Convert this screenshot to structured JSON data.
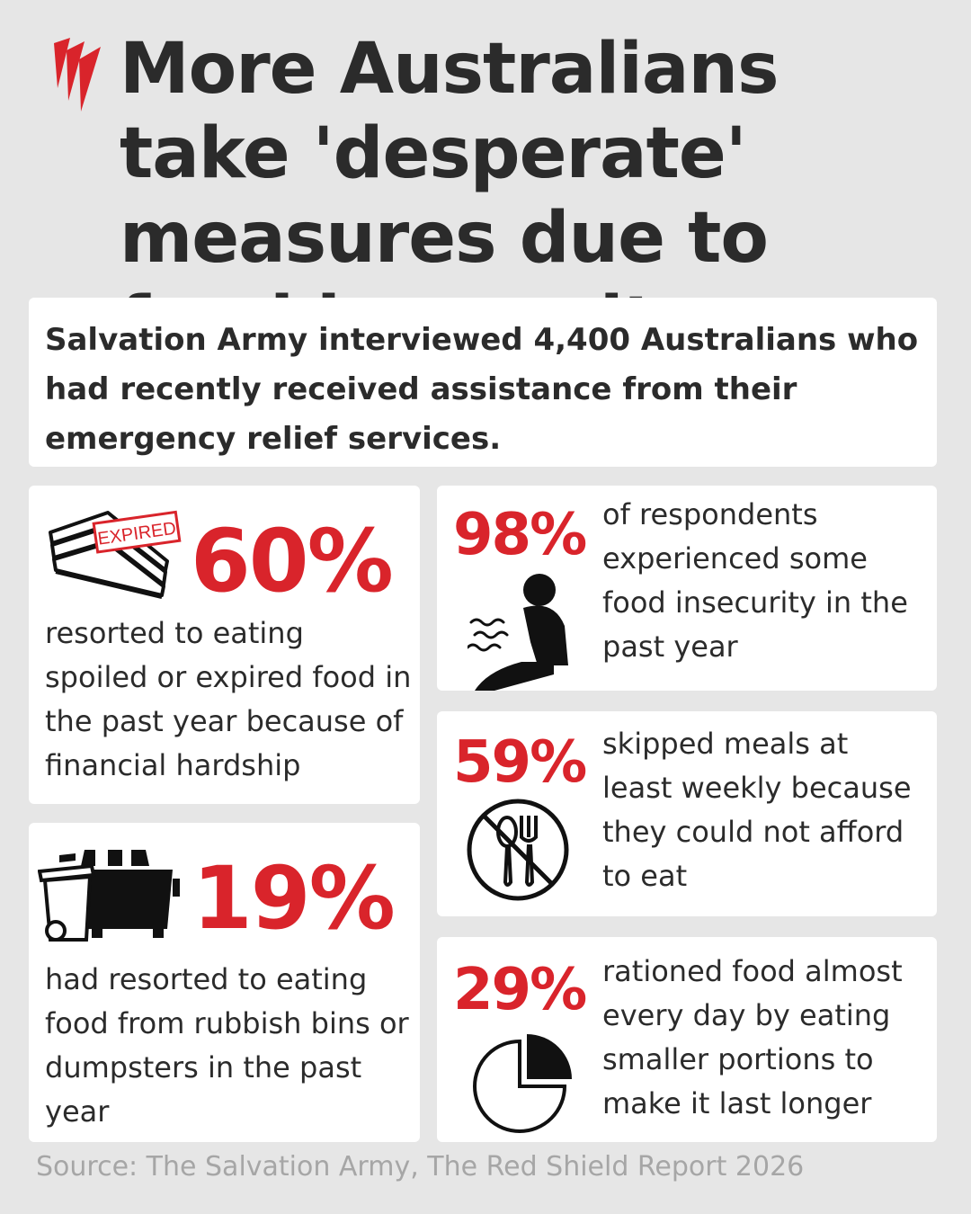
{
  "header": {
    "title": "More Australians take 'desperate' measures due to food insecurity",
    "logo_icon": "sbs-logo-icon",
    "accent_color": "#d9242b"
  },
  "intro": {
    "text": "Salvation Army interviewed 4,400 Australians who had recently received assistance from their emergency relief services."
  },
  "stats": {
    "expired_food": {
      "percent": "60%",
      "description": "resorted to eating spoiled or expired food in the past year because of financial hardship",
      "icon": "expired-sandwich-icon",
      "stamp_text": "EXPIRED"
    },
    "bins": {
      "percent": "19%",
      "description": "had resorted to eating food from rubbish bins or dumpsters in the past year",
      "icon": "rubbish-bin-icon"
    },
    "insecurity": {
      "percent": "98%",
      "description": "of respondents experienced some food insecurity in the past year",
      "icon": "hungry-person-icon"
    },
    "skipped": {
      "percent": "59%",
      "description": "skipped meals at least weekly because they could not afford to eat",
      "icon": "no-cutlery-icon"
    },
    "rationed": {
      "percent": "29%",
      "description": "rationed food almost every day by eating smaller portions to make it last longer",
      "icon": "pie-portion-icon"
    }
  },
  "footer": {
    "source": "Source: The Salvation Army, The Red Shield Report 2026"
  }
}
